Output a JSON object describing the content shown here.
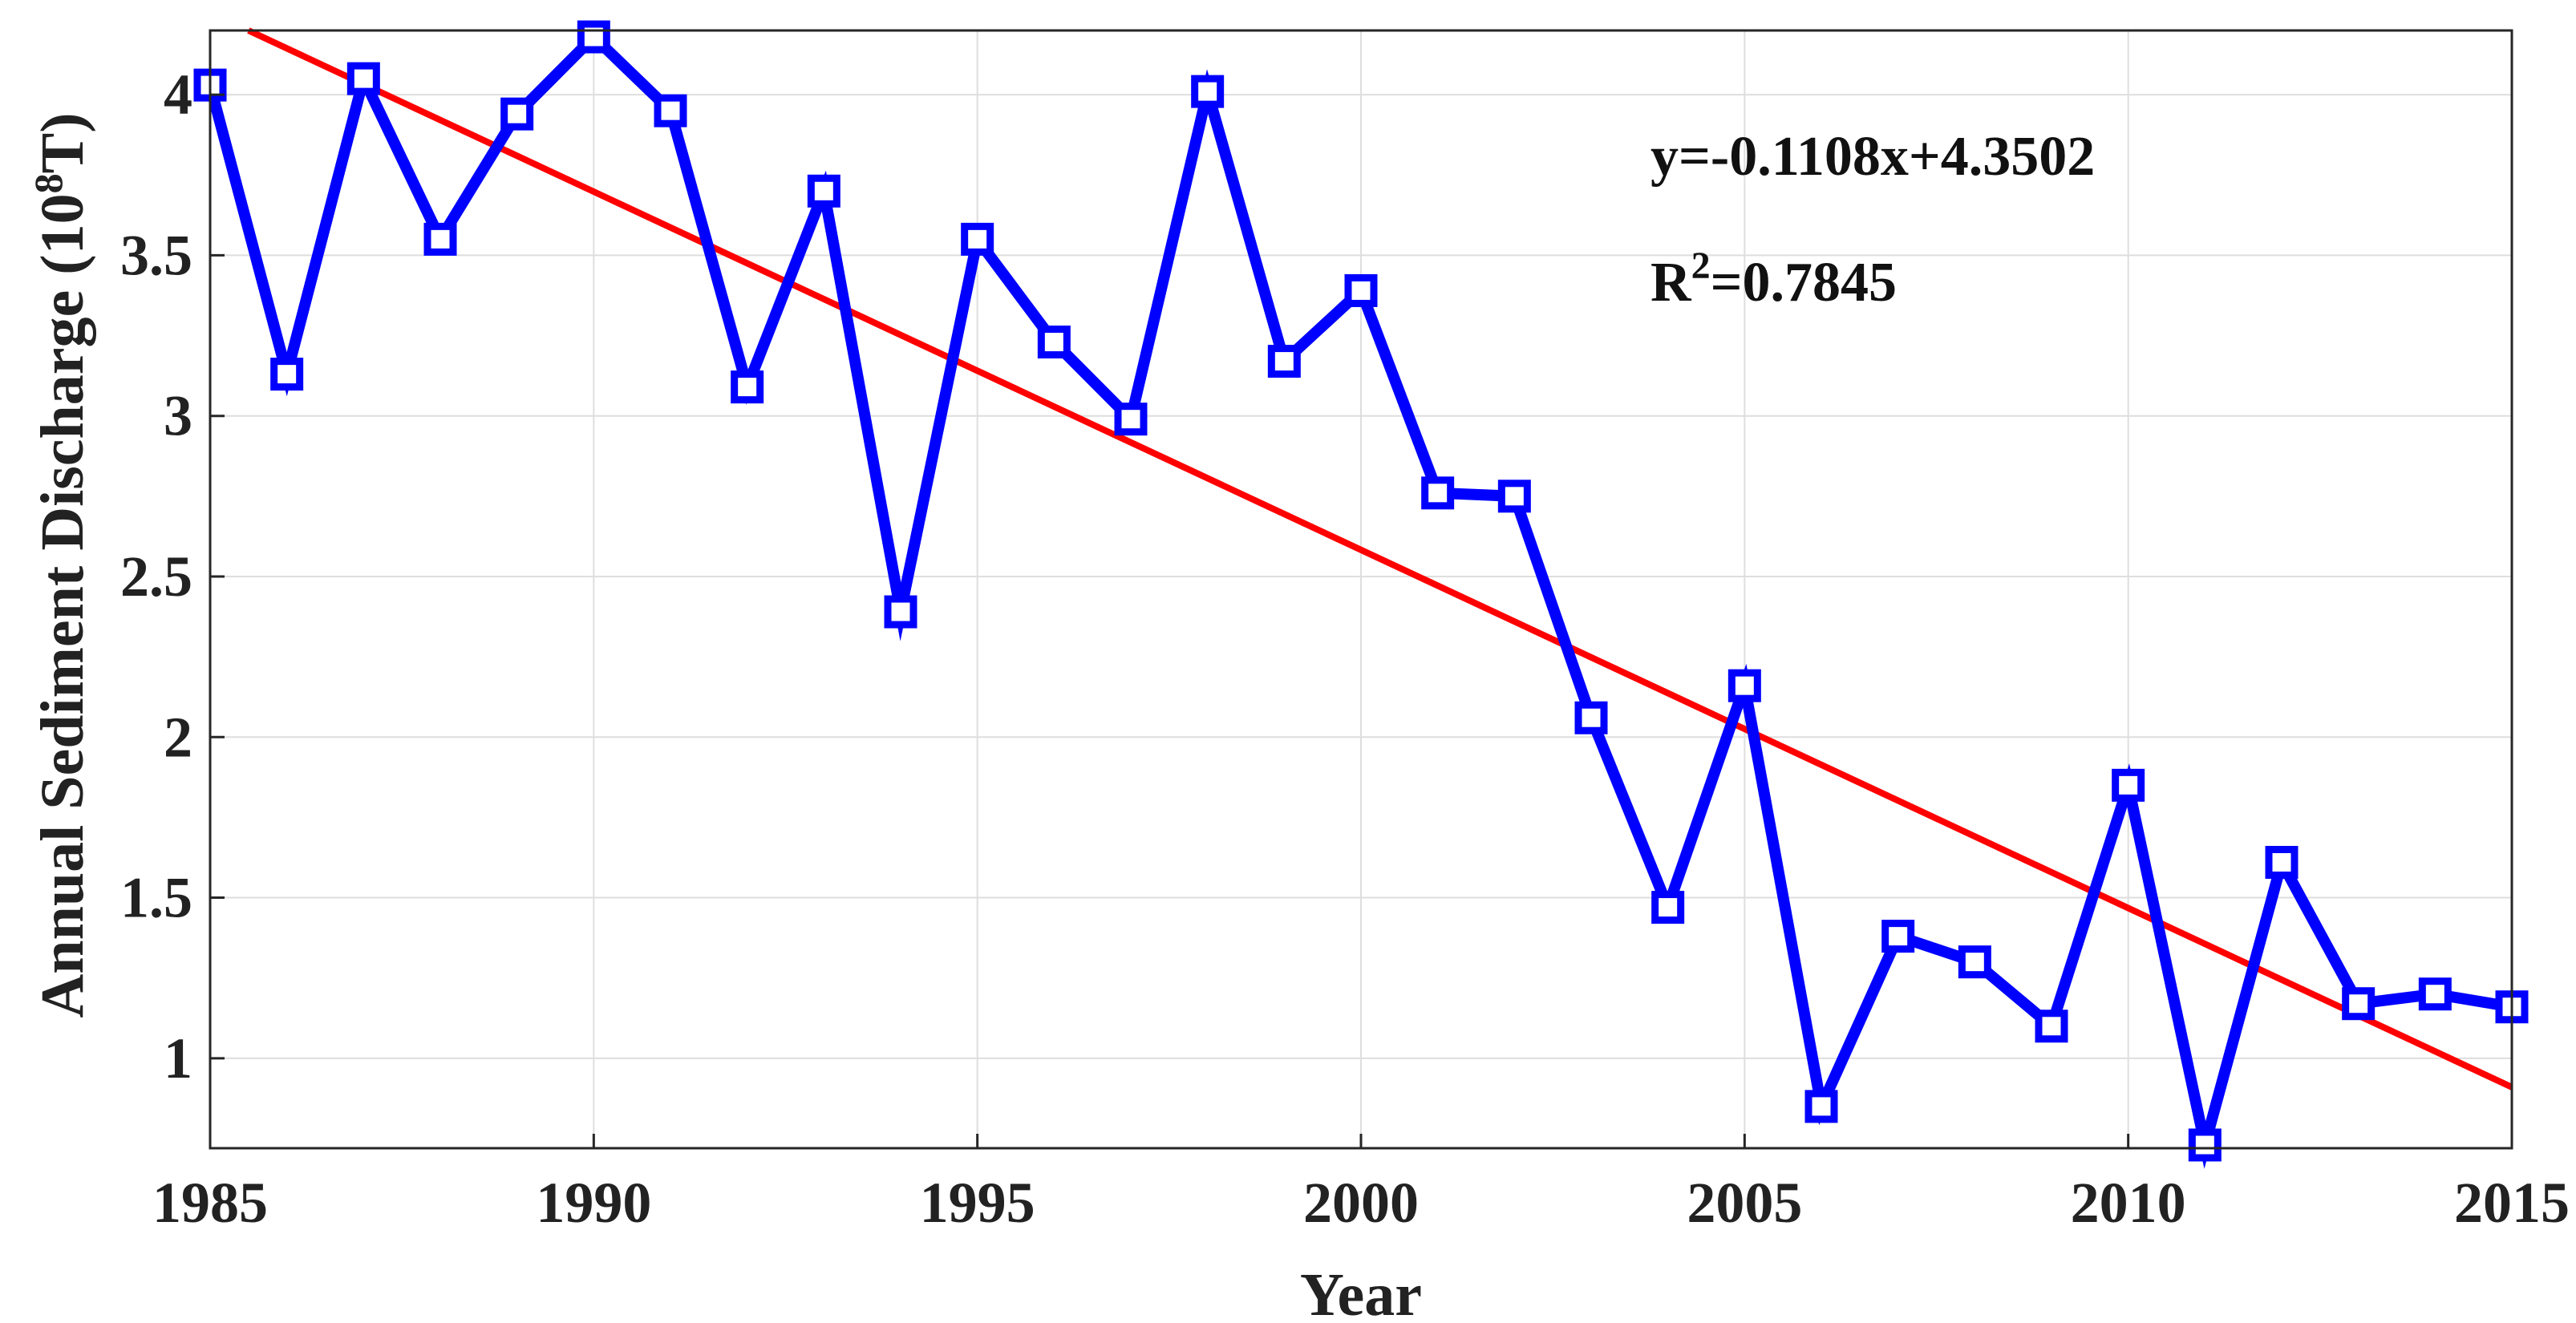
{
  "chart_data": {
    "type": "line",
    "title": "",
    "xlabel": "Year",
    "ylabel": {
      "main": "Annual Sediment Discharge (10",
      "sup": "8",
      "tail": "T)"
    },
    "xlim": [
      1985,
      2015
    ],
    "ylim": [
      0.72,
      4.2
    ],
    "xticks": [
      1985,
      1990,
      1995,
      2000,
      2005,
      2010,
      2015
    ],
    "yticks": [
      1,
      1.5,
      2,
      2.5,
      3,
      3.5,
      4
    ],
    "ytick_labels": [
      "1",
      "1.5",
      "2",
      "2.5",
      "3",
      "3.5",
      "4"
    ],
    "grid": true,
    "series": [
      {
        "name": "Annual Sediment Discharge",
        "color": "#0000ff",
        "marker": "square",
        "x": [
          1985,
          1986,
          1987,
          1988,
          1989,
          1990,
          1991,
          1992,
          1993,
          1994,
          1995,
          1996,
          1997,
          1998,
          1999,
          2000,
          2001,
          2002,
          2003,
          2004,
          2005,
          2006,
          2007,
          2008,
          2009,
          2010,
          2011,
          2012,
          2013,
          2014,
          2015
        ],
        "y": [
          4.03,
          3.13,
          4.05,
          3.55,
          3.94,
          4.18,
          3.95,
          3.09,
          3.7,
          2.39,
          3.55,
          3.23,
          2.99,
          4.01,
          3.17,
          3.39,
          2.76,
          2.75,
          2.06,
          1.47,
          2.16,
          0.85,
          1.38,
          1.3,
          1.1,
          1.85,
          0.73,
          1.61,
          1.17,
          1.2,
          1.16
        ]
      }
    ],
    "trendline": {
      "color": "#ff0000",
      "x_range": [
        1985.5,
        2015
      ],
      "start_value": 4.2,
      "end_value": 0.91
    },
    "annotations": {
      "equation": "y=-0.1108x+4.3502",
      "r2_label": "R",
      "r2_sup": "2",
      "r2_value": "=0.7845"
    }
  }
}
